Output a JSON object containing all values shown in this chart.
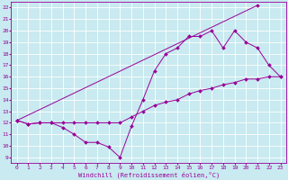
{
  "xlabel": "Windchill (Refroidissement éolien,°C)",
  "bg_color": "#c8eaf0",
  "line_color": "#990099",
  "grid_color": "#ffffff",
  "xlim": [
    -0.5,
    23.5
  ],
  "ylim": [
    8.5,
    22.5
  ],
  "xticks": [
    0,
    1,
    2,
    3,
    4,
    5,
    6,
    7,
    8,
    9,
    10,
    11,
    12,
    13,
    14,
    15,
    16,
    17,
    18,
    19,
    20,
    21,
    22,
    23
  ],
  "yticks": [
    9,
    10,
    11,
    12,
    13,
    14,
    15,
    16,
    17,
    18,
    19,
    20,
    21,
    22
  ],
  "series1_x": [
    0,
    1,
    2,
    3,
    4,
    5,
    6,
    7,
    8,
    9,
    10,
    11,
    12,
    13,
    14,
    15,
    16,
    17,
    18,
    19,
    20,
    21,
    22,
    23
  ],
  "series1_y": [
    12.2,
    11.9,
    12.0,
    12.0,
    11.6,
    11.0,
    10.3,
    10.3,
    9.9,
    9.0,
    11.7,
    14.0,
    16.5,
    18.0,
    18.5,
    19.5,
    19.5,
    20.0,
    18.5,
    20.0,
    19.0,
    18.5,
    17.0,
    16.0
  ],
  "series2_x": [
    0,
    1,
    2,
    3,
    4,
    5,
    6,
    7,
    8,
    9,
    10,
    11,
    12,
    13,
    14,
    15,
    16,
    17,
    18,
    19,
    20,
    21,
    22,
    23
  ],
  "series2_y": [
    12.2,
    11.9,
    12.0,
    12.0,
    12.0,
    12.0,
    12.0,
    12.0,
    12.0,
    12.0,
    12.5,
    13.0,
    13.5,
    13.8,
    14.0,
    14.5,
    14.8,
    15.0,
    15.3,
    15.5,
    15.8,
    15.8,
    16.0,
    16.0
  ],
  "series3_x": [
    0,
    21
  ],
  "series3_y": [
    12.2,
    22.2
  ]
}
